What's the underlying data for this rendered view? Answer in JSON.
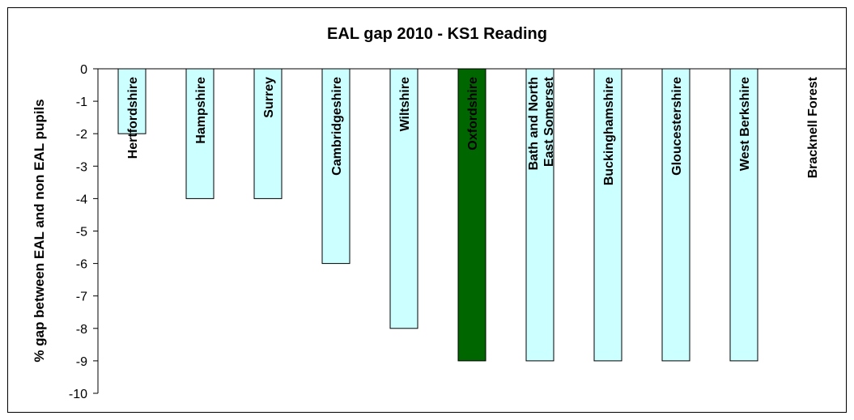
{
  "chart_data": {
    "type": "bar",
    "title": "EAL gap 2010 - KS1 Reading",
    "y_label": "% gap between EAL and non EAL pupils",
    "categories": [
      "Hertfordshire",
      "Hampshire",
      "Surrey",
      "Cambridgeshire",
      "Wiltshire",
      "Oxfordshire",
      "Bath and North East Somerset",
      "Buckinghamshire",
      "Gloucestershire",
      "West Berkshire",
      "Bracknell Forest"
    ],
    "values": [
      -2,
      -4,
      -4,
      -6,
      -8,
      -9,
      -9,
      -9,
      -9,
      -9,
      0
    ],
    "colors": [
      "#ccffff",
      "#ccffff",
      "#ccffff",
      "#ccffff",
      "#ccffff",
      "#006600",
      "#ccffff",
      "#ccffff",
      "#ccffff",
      "#ccffff",
      "#ccffff"
    ],
    "ylim": [
      -10,
      0
    ],
    "yticks": [
      0,
      -1,
      -2,
      -3,
      -4,
      -5,
      -6,
      -7,
      -8,
      -9,
      -10
    ],
    "grid": false
  }
}
